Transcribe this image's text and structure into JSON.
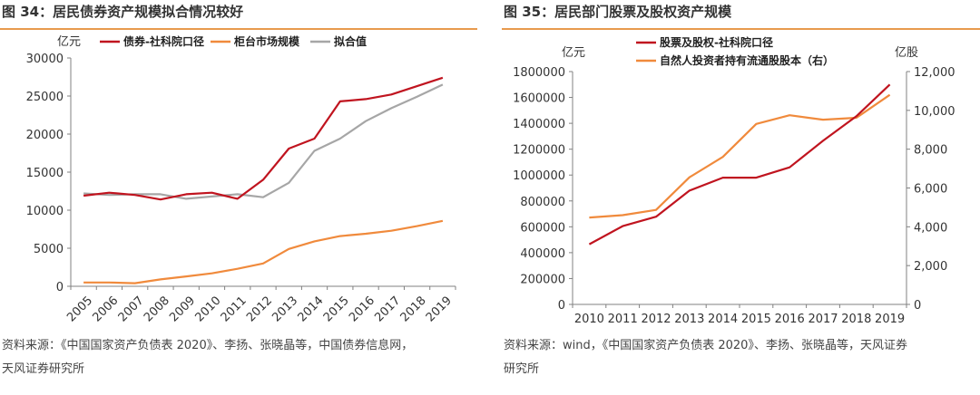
{
  "left": {
    "title": "图 34：居民债券资产规模拟合情况较好",
    "source_line1": "资料来源：《中国国家资产负债表 2020》、李扬、张晓晶等，中国债券信息网，",
    "source_line2": "天风证券研究所"
  },
  "right": {
    "title": "图 35：居民部门股票及股权资产规模",
    "source_line1": "资料来源：wind，《中国国家资产负债表 2020》、李扬、张晓晶等，天风证券",
    "source_line2": "研究所"
  },
  "chart_data": [
    {
      "type": "line",
      "ylabel": "亿元",
      "ylim": [
        0,
        30000
      ],
      "yticks": [
        0,
        5000,
        10000,
        15000,
        20000,
        25000,
        30000
      ],
      "grid": false,
      "legend_position": "top",
      "x": [
        "2005",
        "2006",
        "2007",
        "2008",
        "2009",
        "2010",
        "2011",
        "2012",
        "2013",
        "2014",
        "2015",
        "2016",
        "2017",
        "2018",
        "2019"
      ],
      "series": [
        {
          "name": "债券-社科院口径",
          "color": "#C0141F",
          "values": [
            11900,
            12300,
            12000,
            11400,
            12100,
            12300,
            11500,
            14000,
            18100,
            19400,
            24300,
            24600,
            25200,
            26300,
            27400
          ]
        },
        {
          "name": "柜台市场规模",
          "color": "#F08A3C",
          "values": [
            500,
            500,
            400,
            900,
            1300,
            1700,
            2300,
            3000,
            4900,
            5900,
            6600,
            6900,
            7300,
            7900,
            8600
          ]
        },
        {
          "name": "拟合值",
          "color": "#A6A6A6",
          "values": [
            12200,
            12000,
            12100,
            12100,
            11500,
            11800,
            12100,
            11700,
            13600,
            17800,
            19400,
            21700,
            23400,
            24900,
            26500
          ]
        }
      ]
    },
    {
      "type": "line",
      "ylabel": "亿元",
      "y2label": "亿股",
      "ylim": [
        0,
        1800000
      ],
      "yticks": [
        0,
        200000,
        400000,
        600000,
        800000,
        1000000,
        1200000,
        1400000,
        1600000,
        1800000
      ],
      "y2lim": [
        0,
        12000
      ],
      "y2ticks": [
        "0",
        "2,000",
        "4,000",
        "6,000",
        "8,000",
        "10,000",
        "12,000"
      ],
      "grid": false,
      "legend_position": "top",
      "x": [
        "2010",
        "2011",
        "2012",
        "2013",
        "2014",
        "2015",
        "2016",
        "2017",
        "2018",
        "2019"
      ],
      "series": [
        {
          "name": "股票及股权-社科院口径",
          "color": "#C0141F",
          "axis": "left",
          "values": [
            465000,
            605000,
            678000,
            880000,
            980000,
            980000,
            1060000,
            1265000,
            1455000,
            1700000
          ]
        },
        {
          "name": "自然人投资者持有流通股股本（右）",
          "color": "#F08A3C",
          "axis": "right",
          "values": [
            4480,
            4600,
            4870,
            6550,
            7600,
            9300,
            9750,
            9520,
            9620,
            10800
          ]
        }
      ]
    }
  ]
}
